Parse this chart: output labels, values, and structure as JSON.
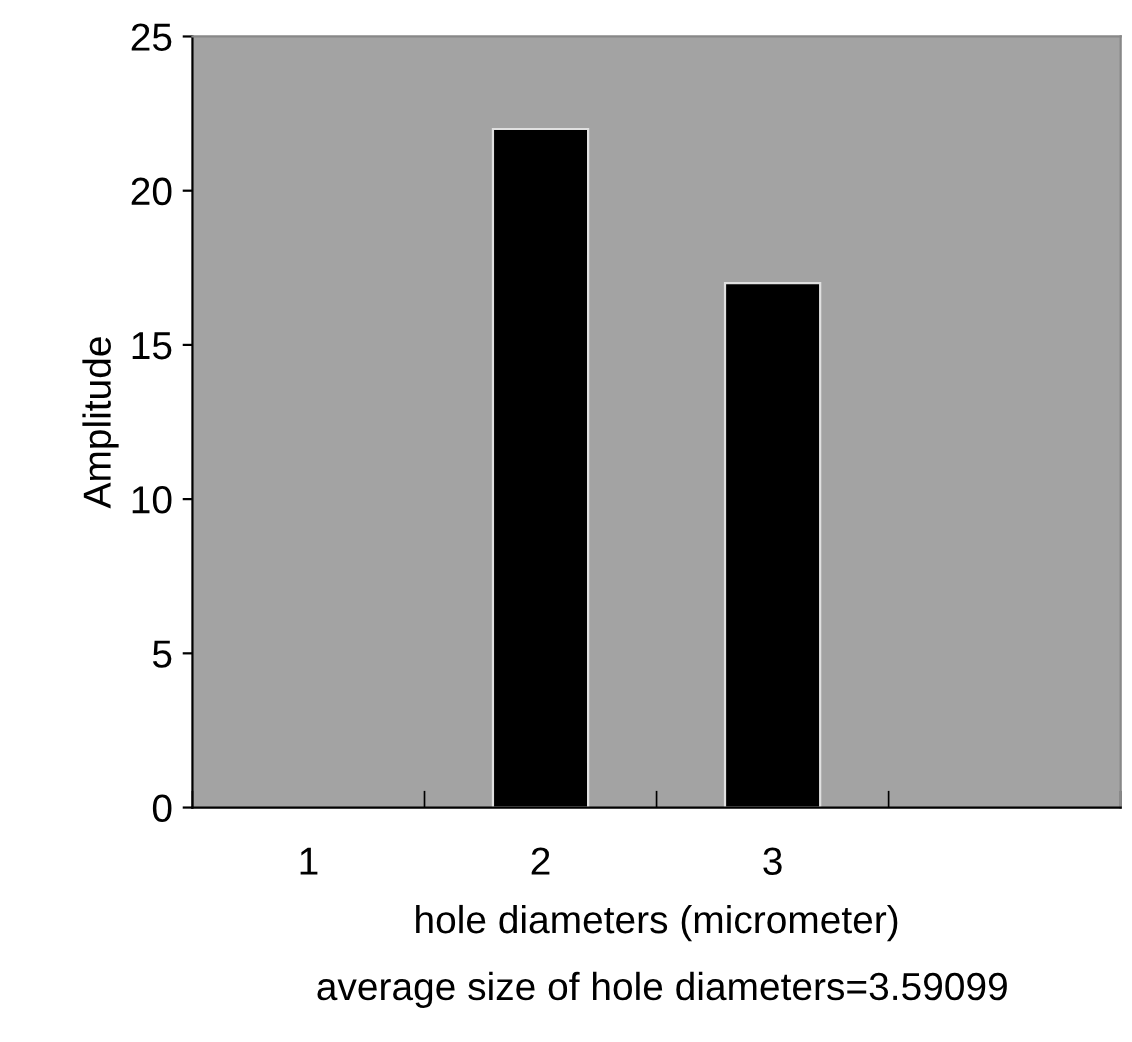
{
  "chart_data": {
    "type": "bar",
    "categories": [
      "1",
      "2",
      "3",
      null
    ],
    "values": [
      null,
      22,
      17,
      null
    ],
    "color": "#000000",
    "ylabel": "Amplitude",
    "xlabel": "hole diameters (micrometer)",
    "annotations": [
      "average size of hole diameters=3.59099"
    ],
    "ylim": [
      0,
      25
    ],
    "yticks": [
      0,
      5,
      10,
      15,
      20,
      25
    ],
    "grid": false,
    "legend": false
  }
}
